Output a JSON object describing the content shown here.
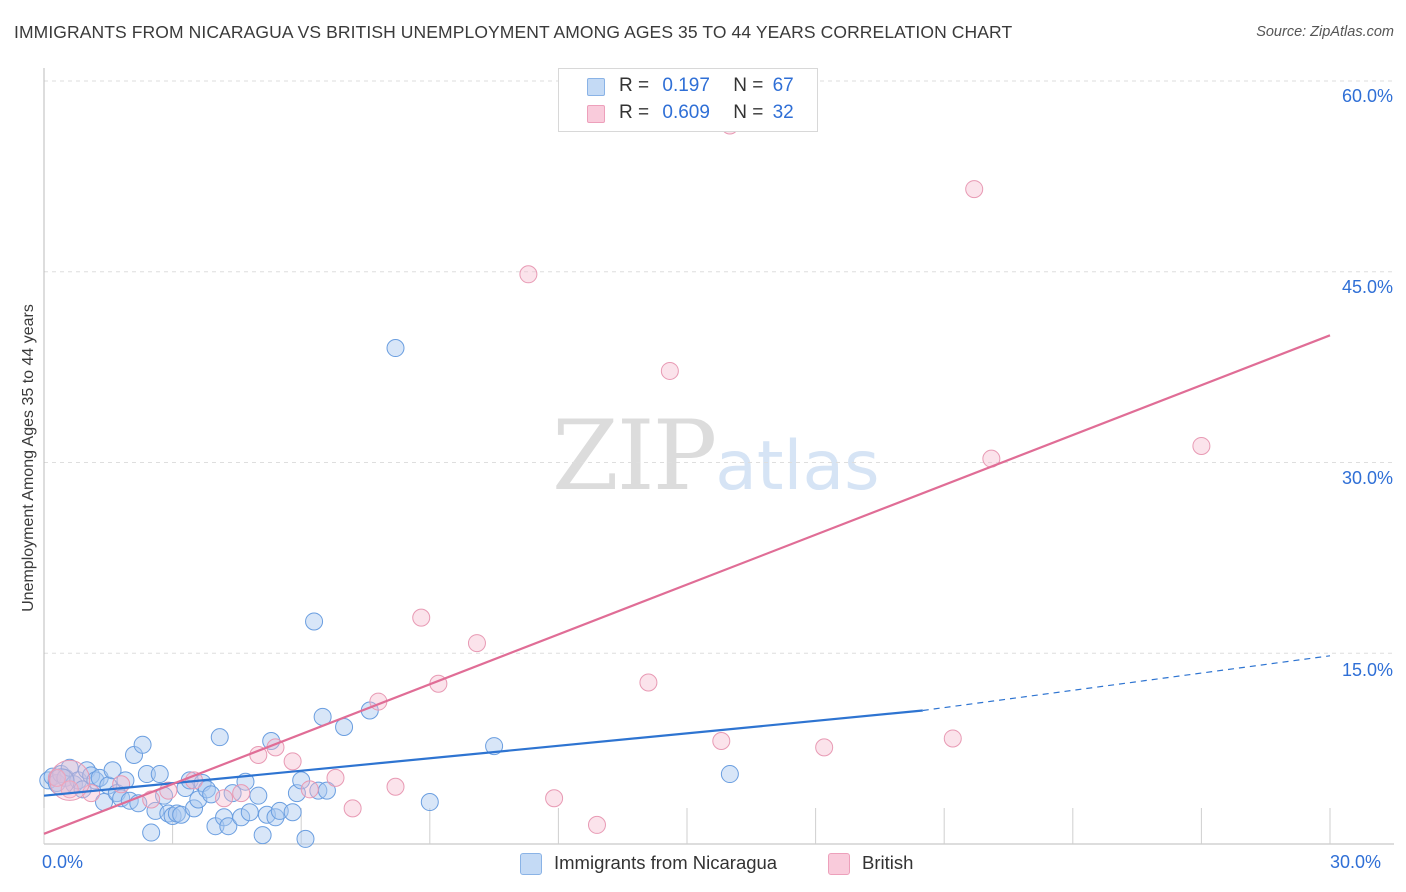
{
  "header": {
    "title": "IMMIGRANTS FROM NICARAGUA VS BRITISH UNEMPLOYMENT AMONG AGES 35 TO 44 YEARS CORRELATION CHART",
    "source": "Source: ZipAtlas.com"
  },
  "watermark": {
    "zip": "ZIP",
    "atlas": "atlas"
  },
  "legend": {
    "rows": [
      {
        "r_label": "R =",
        "r_value": "0.197",
        "n_label": "N =",
        "n_value": "67",
        "color": "#a8c8f0"
      },
      {
        "r_label": "R =",
        "r_value": "0.609",
        "n_label": "N =",
        "n_value": "32",
        "color": "#f5b8cc"
      }
    ]
  },
  "bottom_legend": {
    "items": [
      {
        "label": "Immigrants from Nicaragua",
        "color": "#a8c8f0"
      },
      {
        "label": "British",
        "color": "#f5b8cc"
      }
    ]
  },
  "axis_labels": {
    "x_min": "0.0%",
    "x_max": "30.0%",
    "y_ticks": [
      "60.0%",
      "45.0%",
      "30.0%",
      "15.0%"
    ]
  },
  "chart_data": {
    "type": "scatter",
    "title": "IMMIGRANTS FROM NICARAGUA VS BRITISH UNEMPLOYMENT AMONG AGES 35 TO 44 YEARS CORRELATION CHART",
    "xlabel": "",
    "ylabel": "Unemployment Among Ages 35 to 44 years",
    "xlim": [
      0,
      30
    ],
    "ylim": [
      0,
      62
    ],
    "grid": true,
    "series": [
      {
        "name": "Immigrants from Nicaragua",
        "color": "#6a9ee0",
        "fill": "#a8c8f0",
        "r": 0.197,
        "n": 67,
        "trend": {
          "x": [
            0,
            20.5
          ],
          "y": [
            3.8,
            10.5
          ],
          "dash_to": [
            30,
            14.8
          ]
        },
        "points": [
          [
            0.1,
            5.0
          ],
          [
            0.2,
            5.3
          ],
          [
            0.3,
            4.8
          ],
          [
            0.4,
            5.5
          ],
          [
            0.5,
            5.2
          ],
          [
            0.6,
            6.0
          ],
          [
            0.7,
            4.7
          ],
          [
            0.8,
            5.0
          ],
          [
            0.9,
            4.3
          ],
          [
            1.0,
            5.8
          ],
          [
            1.1,
            5.4
          ],
          [
            1.2,
            5.0
          ],
          [
            1.3,
            5.2
          ],
          [
            1.4,
            3.3
          ],
          [
            1.5,
            4.6
          ],
          [
            1.6,
            5.8
          ],
          [
            1.7,
            4.0
          ],
          [
            1.8,
            3.6
          ],
          [
            1.9,
            5.0
          ],
          [
            2.0,
            3.4
          ],
          [
            2.1,
            7.0
          ],
          [
            2.2,
            3.2
          ],
          [
            2.3,
            7.8
          ],
          [
            2.4,
            5.5
          ],
          [
            2.5,
            0.9
          ],
          [
            2.6,
            2.6
          ],
          [
            2.7,
            5.5
          ],
          [
            2.8,
            3.8
          ],
          [
            2.9,
            2.4
          ],
          [
            3.0,
            2.2
          ],
          [
            3.1,
            2.4
          ],
          [
            3.2,
            2.3
          ],
          [
            3.3,
            4.4
          ],
          [
            3.4,
            5.0
          ],
          [
            3.5,
            2.8
          ],
          [
            3.6,
            3.5
          ],
          [
            3.7,
            4.8
          ],
          [
            3.8,
            4.3
          ],
          [
            3.9,
            3.9
          ],
          [
            4.0,
            1.4
          ],
          [
            4.1,
            8.4
          ],
          [
            4.2,
            2.1
          ],
          [
            4.3,
            1.4
          ],
          [
            4.4,
            4.0
          ],
          [
            4.6,
            2.1
          ],
          [
            4.7,
            4.9
          ],
          [
            4.8,
            2.5
          ],
          [
            5.0,
            3.8
          ],
          [
            5.1,
            0.7
          ],
          [
            5.2,
            2.3
          ],
          [
            5.3,
            8.1
          ],
          [
            5.4,
            2.1
          ],
          [
            5.5,
            2.6
          ],
          [
            5.8,
            2.5
          ],
          [
            5.9,
            4.0
          ],
          [
            6.0,
            5.0
          ],
          [
            6.1,
            0.4
          ],
          [
            6.3,
            17.5
          ],
          [
            6.4,
            4.2
          ],
          [
            6.5,
            10.0
          ],
          [
            6.6,
            4.2
          ],
          [
            7.0,
            9.2
          ],
          [
            7.6,
            10.5
          ],
          [
            8.2,
            39.0
          ],
          [
            9.0,
            3.3
          ],
          [
            10.5,
            7.7
          ],
          [
            16.0,
            5.5
          ]
        ]
      },
      {
        "name": "British",
        "color": "#e4789e",
        "fill": "#f5b8cc",
        "r": 0.609,
        "n": 32,
        "trend": {
          "x": [
            0,
            30
          ],
          "y": [
            0.8,
            40.0
          ]
        },
        "points": [
          [
            0.3,
            5.2
          ],
          [
            0.6,
            4.3
          ],
          [
            1.1,
            4.0
          ],
          [
            1.8,
            4.7
          ],
          [
            2.5,
            3.5
          ],
          [
            2.9,
            4.2
          ],
          [
            3.5,
            5.0
          ],
          [
            4.2,
            3.6
          ],
          [
            4.6,
            4.0
          ],
          [
            5.0,
            7.0
          ],
          [
            5.4,
            7.6
          ],
          [
            5.8,
            6.5
          ],
          [
            6.2,
            4.3
          ],
          [
            6.8,
            5.2
          ],
          [
            7.2,
            2.8
          ],
          [
            7.8,
            11.2
          ],
          [
            8.2,
            4.5
          ],
          [
            8.8,
            17.8
          ],
          [
            9.2,
            12.6
          ],
          [
            10.1,
            15.8
          ],
          [
            11.3,
            44.8
          ],
          [
            11.9,
            3.6
          ],
          [
            12.9,
            1.5
          ],
          [
            14.1,
            12.7
          ],
          [
            14.6,
            37.2
          ],
          [
            15.8,
            8.1
          ],
          [
            16.0,
            56.5
          ],
          [
            18.2,
            7.6
          ],
          [
            21.2,
            8.3
          ],
          [
            21.7,
            51.5
          ],
          [
            22.1,
            30.3
          ],
          [
            27.0,
            31.3
          ]
        ]
      }
    ]
  }
}
